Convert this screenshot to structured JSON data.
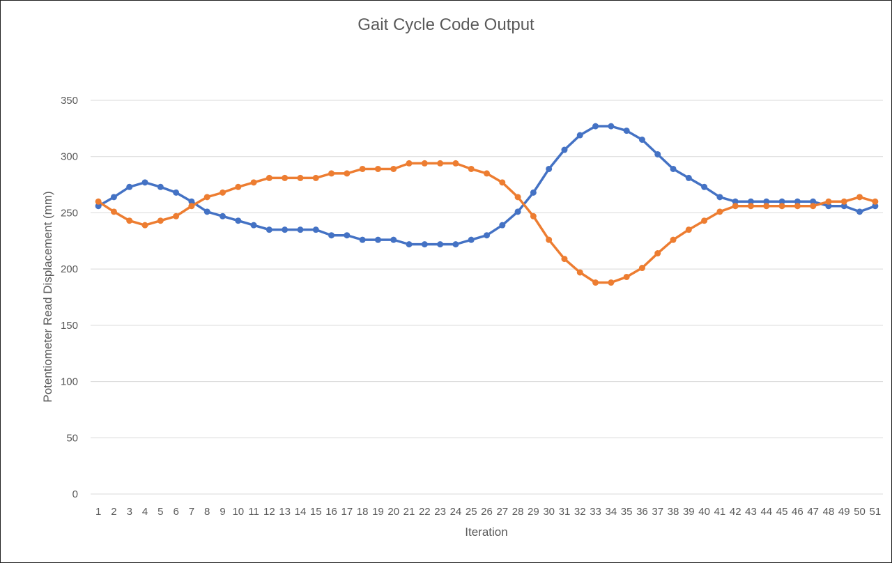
{
  "chart_data": {
    "type": "line",
    "title": "Gait Cycle Code Output",
    "xlabel": "Iteration",
    "ylabel": "Potentiometer Read Displacement  (mm)",
    "ylim": [
      0,
      350
    ],
    "yticks": [
      0,
      50,
      100,
      150,
      200,
      250,
      300,
      350
    ],
    "grid": true,
    "legend": "none",
    "categories": [
      "1",
      "2",
      "3",
      "4",
      "5",
      "6",
      "7",
      "8",
      "9",
      "10",
      "11",
      "12",
      "13",
      "14",
      "15",
      "16",
      "17",
      "18",
      "19",
      "20",
      "21",
      "22",
      "23",
      "24",
      "25",
      "26",
      "27",
      "28",
      "29",
      "30",
      "31",
      "32",
      "33",
      "34",
      "35",
      "36",
      "37",
      "38",
      "39",
      "40",
      "41",
      "42",
      "43",
      "44",
      "45",
      "46",
      "47",
      "48",
      "49",
      "50",
      "51"
    ],
    "series": [
      {
        "color": "#4472c4",
        "values": [
          256,
          264,
          273,
          277,
          273,
          268,
          260,
          251,
          247,
          243,
          239,
          235,
          235,
          235,
          235,
          230,
          230,
          226,
          226,
          226,
          222,
          222,
          222,
          222,
          226,
          230,
          239,
          251,
          268,
          289,
          306,
          319,
          327,
          327,
          323,
          315,
          302,
          289,
          281,
          273,
          264,
          260,
          260,
          260,
          260,
          260,
          260,
          256,
          256,
          251,
          256
        ]
      },
      {
        "color": "#ed7d31",
        "values": [
          260,
          251,
          243,
          239,
          243,
          247,
          256,
          264,
          268,
          273,
          277,
          281,
          281,
          281,
          281,
          285,
          285,
          289,
          289,
          289,
          294,
          294,
          294,
          294,
          289,
          285,
          277,
          264,
          247,
          226,
          209,
          197,
          188,
          188,
          193,
          201,
          214,
          226,
          235,
          243,
          251,
          256,
          256,
          256,
          256,
          256,
          256,
          260,
          260,
          264,
          260
        ]
      }
    ]
  }
}
